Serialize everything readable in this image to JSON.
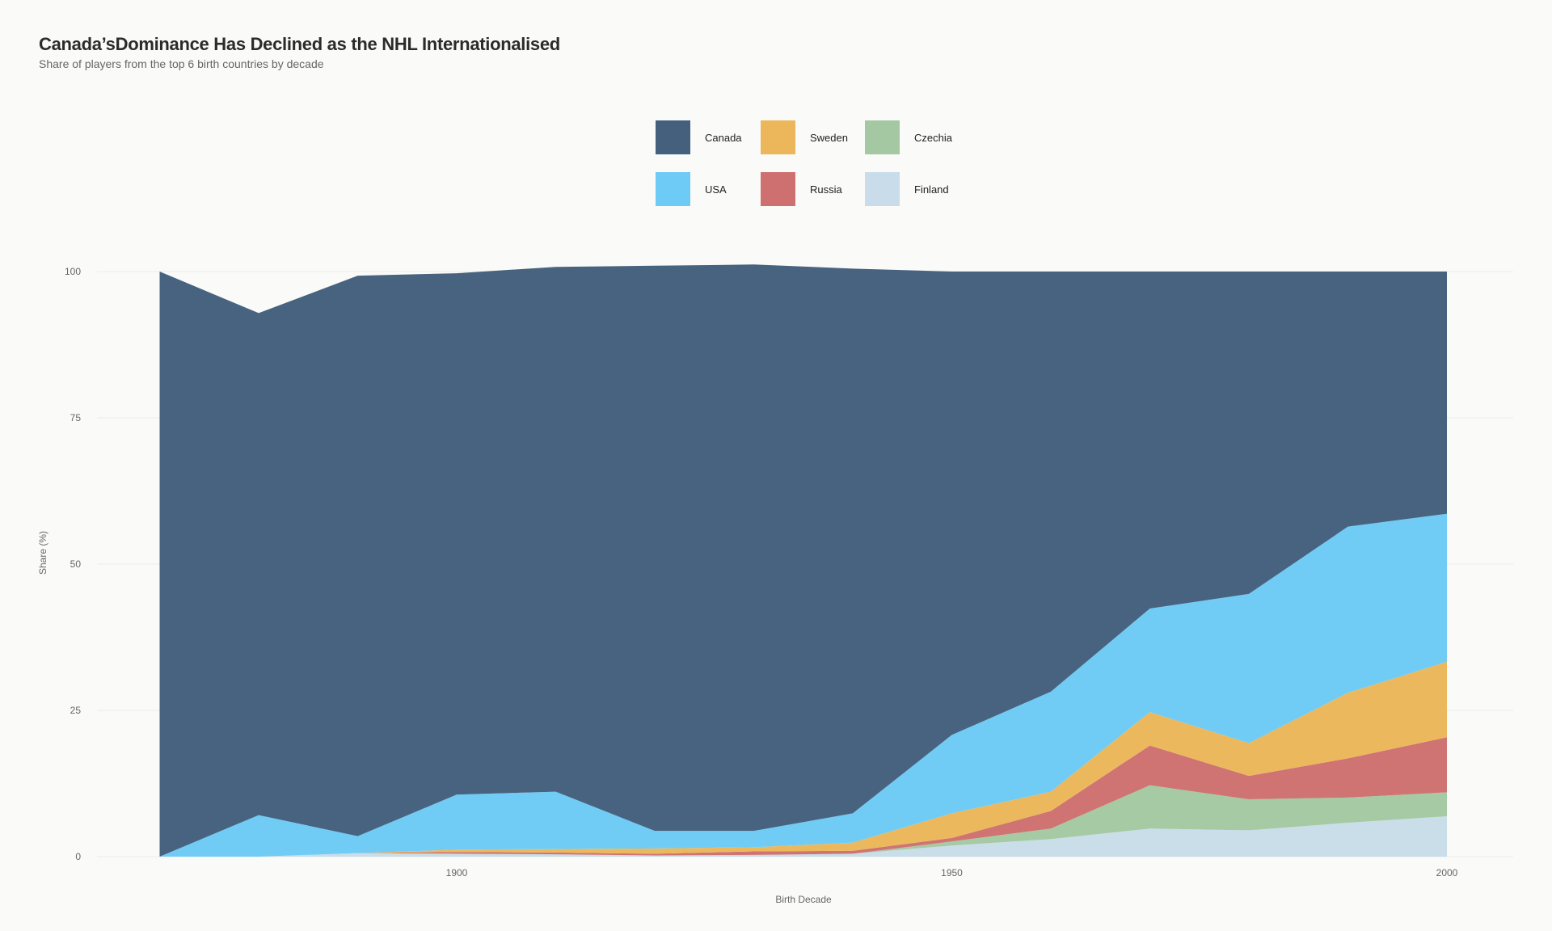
{
  "title": "Canada’sDominance Has Declined as the NHL Internationalised",
  "subtitle": "Share of players from the top 6 birth countries by decade",
  "chart_data": {
    "type": "area",
    "stacked": true,
    "title": "Canada’sDominance Has Declined as the NHL Internationalised",
    "subtitle": "Share of players from the top 6 birth countries by decade",
    "xlabel": "Birth Decade",
    "ylabel": "Share (%)",
    "x": [
      1870,
      1880,
      1890,
      1900,
      1910,
      1920,
      1930,
      1940,
      1950,
      1960,
      1970,
      1980,
      1990,
      2000
    ],
    "xticks": [
      1900,
      1950,
      2000
    ],
    "yticks": [
      0,
      25,
      50,
      75,
      100
    ],
    "ylim": [
      0,
      100
    ],
    "grid": true,
    "legend_placement": "top-center",
    "series": [
      {
        "name": "Finland",
        "color": "#c8dde9",
        "values": [
          0,
          0,
          0.6,
          0.5,
          0.4,
          0.2,
          0.3,
          0.5,
          1.9,
          3.0,
          4.8,
          4.5,
          5.8,
          6.9
        ]
      },
      {
        "name": "Czechia",
        "color": "#a4c9a2",
        "values": [
          0,
          0,
          0,
          0,
          0,
          0,
          0,
          0,
          0.7,
          1.8,
          7.4,
          5.3,
          4.3,
          4.1
        ]
      },
      {
        "name": "Russia",
        "color": "#cf7070",
        "values": [
          0,
          0,
          0,
          0.3,
          0.3,
          0.3,
          0.6,
          0.5,
          0.6,
          3.0,
          6.8,
          4.0,
          6.7,
          9.4
        ]
      },
      {
        "name": "Sweden",
        "color": "#ecb75a",
        "values": [
          0,
          0,
          0,
          0.4,
          0.6,
          0.9,
          0.7,
          1.4,
          4.2,
          3.3,
          5.7,
          5.6,
          11.2,
          12.9
        ]
      },
      {
        "name": "USA",
        "color": "#6ecbf5",
        "values": [
          0,
          7.1,
          2.9,
          9.4,
          9.8,
          3.0,
          2.8,
          5.0,
          13.4,
          17.1,
          17.7,
          25.5,
          28.4,
          25.3
        ]
      },
      {
        "name": "Canada",
        "color": "#44607c",
        "values": [
          100,
          85.8,
          95.8,
          89.1,
          89.7,
          96.6,
          96.8,
          93.1,
          79.2,
          71.8,
          57.6,
          55.1,
          43.6,
          41.4
        ]
      }
    ]
  },
  "legend": [
    {
      "name": "Canada",
      "color": "#44607c"
    },
    {
      "name": "Sweden",
      "color": "#ecb75a"
    },
    {
      "name": "Czechia",
      "color": "#a4c9a2"
    },
    {
      "name": "USA",
      "color": "#6ecbf5"
    },
    {
      "name": "Russia",
      "color": "#cf7070"
    },
    {
      "name": "Finland",
      "color": "#c8dde9"
    }
  ]
}
